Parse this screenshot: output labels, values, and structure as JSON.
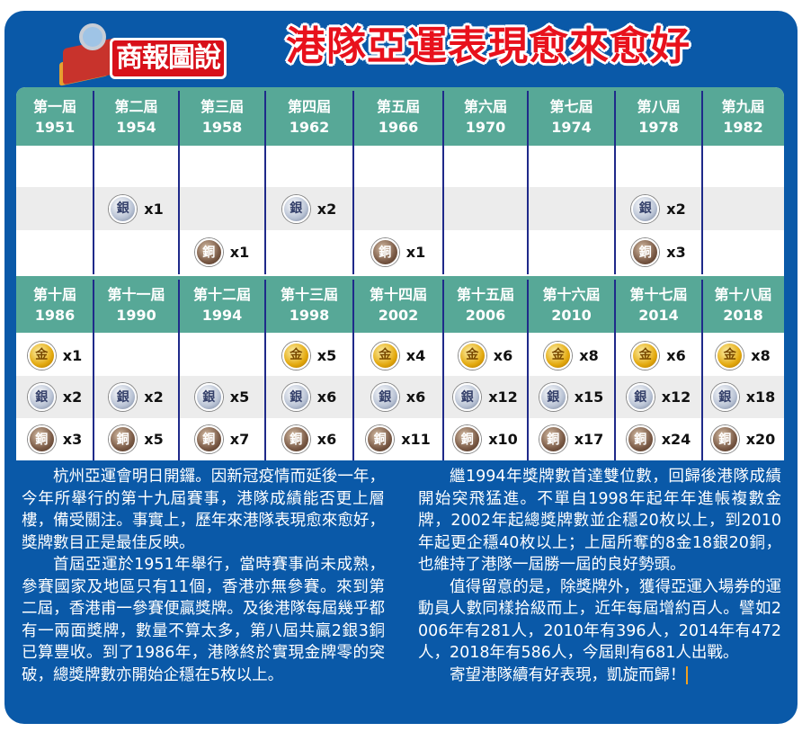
{
  "header": {
    "logo_text": "商報圖說",
    "title": "港隊亞運表現愈來愈好"
  },
  "medal_labels": {
    "gold": "金",
    "silver": "銀",
    "bronze": "銅"
  },
  "colors": {
    "frame": "#0a59a8",
    "header_row": "#57a897",
    "title": "#e8111c"
  },
  "editions": [
    {
      "label": "第一屆",
      "year": "1951",
      "gold": null,
      "silver": null,
      "bronze": null
    },
    {
      "label": "第二屆",
      "year": "1954",
      "gold": null,
      "silver": "x1",
      "bronze": null
    },
    {
      "label": "第三屆",
      "year": "1958",
      "gold": null,
      "silver": null,
      "bronze": "x1"
    },
    {
      "label": "第四屆",
      "year": "1962",
      "gold": null,
      "silver": "x2",
      "bronze": null
    },
    {
      "label": "第五屆",
      "year": "1966",
      "gold": null,
      "silver": null,
      "bronze": "x1"
    },
    {
      "label": "第六屆",
      "year": "1970",
      "gold": null,
      "silver": null,
      "bronze": null
    },
    {
      "label": "第七屆",
      "year": "1974",
      "gold": null,
      "silver": null,
      "bronze": null
    },
    {
      "label": "第八屆",
      "year": "1978",
      "gold": null,
      "silver": "x2",
      "bronze": "x3"
    },
    {
      "label": "第九屆",
      "year": "1982",
      "gold": null,
      "silver": null,
      "bronze": null
    },
    {
      "label": "第十屆",
      "year": "1986",
      "gold": "x1",
      "silver": "x2",
      "bronze": "x3"
    },
    {
      "label": "第十一屆",
      "year": "1990",
      "gold": null,
      "silver": "x2",
      "bronze": "x5"
    },
    {
      "label": "第十二屆",
      "year": "1994",
      "gold": null,
      "silver": "x5",
      "bronze": "x7"
    },
    {
      "label": "第十三屆",
      "year": "1998",
      "gold": "x5",
      "silver": "x6",
      "bronze": "x6"
    },
    {
      "label": "第十四屆",
      "year": "2002",
      "gold": "x4",
      "silver": "x6",
      "bronze": "x11"
    },
    {
      "label": "第十五屆",
      "year": "2006",
      "gold": "x6",
      "silver": "x12",
      "bronze": "x10"
    },
    {
      "label": "第十六屆",
      "year": "2010",
      "gold": "x8",
      "silver": "x15",
      "bronze": "x17"
    },
    {
      "label": "第十七屆",
      "year": "2014",
      "gold": "x6",
      "silver": "x12",
      "bronze": "x24"
    },
    {
      "label": "第十八屆",
      "year": "2018",
      "gold": "x8",
      "silver": "x18",
      "bronze": "x20"
    }
  ],
  "article": {
    "left": [
      "杭州亞運會明日開鑼。因新冠疫情而延後一年，今年所舉行的第十九屆賽事，港隊成績能否更上層樓，備受關注。事實上，歷年來港隊表現愈來愈好，獎牌數目正是最佳反映。",
      "首屆亞運於1951年舉行，當時賽事尚未成熟，參賽國家及地區只有11個，香港亦無參賽。來到第二屆，香港甫一參賽便贏獎牌。及後港隊每屆幾乎都有一兩面獎牌，數量不算太多，第八屆共贏2銀3銅已算豐收。到了1986年，港隊終於實現金牌零的突破，總獎牌數亦開始企穩在5枚以上。"
    ],
    "right": [
      "繼1994年獎牌數首達雙位數，回歸後港隊成績開始突飛猛進。不單自1998年起年年進帳複數金牌，2002年起總獎牌數並企穩20枚以上，到2010年起更企穩40枚以上；上屆所奪的8金18銀20銅，也維持了港隊一屆勝一屆的良好勢頭。",
      "值得留意的是，除獎牌外，獲得亞運入場券的運動員人數同樣拾級而上，近年每屆增約百人。譬如2006年有281人，2010年有396人，2014年有472人，2018年有586人，今屆則有681人出戰。",
      "寄望港隊續有好表現，凱旋而歸！"
    ]
  }
}
